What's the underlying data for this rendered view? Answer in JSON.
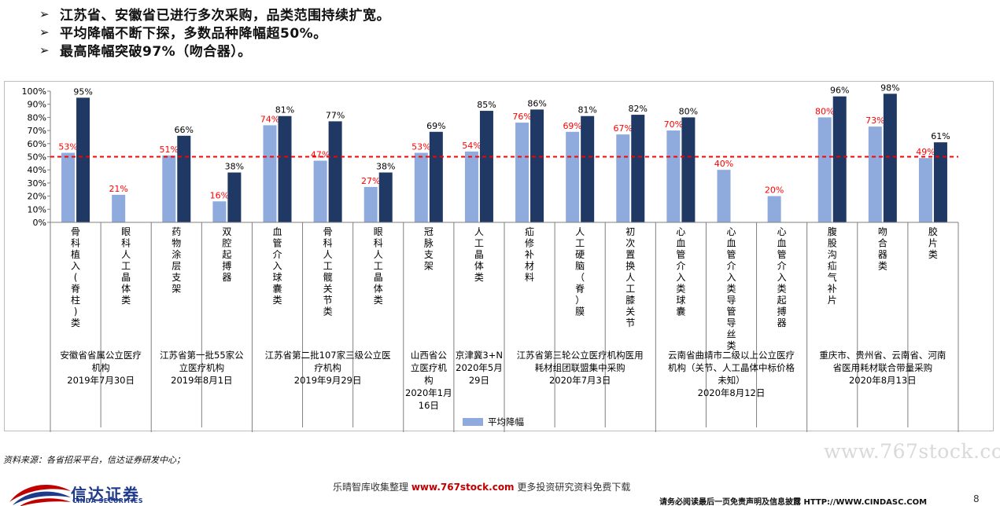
{
  "bullets": [
    {
      "mark": "➢",
      "text": "江苏省、安徽省已进行多次采购，品类范围持续扩宽。"
    },
    {
      "mark": "➢",
      "text": "平均降幅不断下探，多数品种降幅超50%。"
    },
    {
      "mark": "➢",
      "text": "最高降幅突破97%（吻合器）。"
    }
  ],
  "colors": {
    "avg": "#8faadc",
    "max": "#1f3864",
    "avg_label": "#ff0000",
    "max_label": "#000000",
    "ref_line": "#ff0000"
  },
  "chart_data": {
    "type": "bar",
    "ylim": [
      0,
      100
    ],
    "yticks": [
      "0%",
      "10%",
      "20%",
      "30%",
      "40%",
      "50%",
      "60%",
      "70%",
      "80%",
      "90%",
      "100%"
    ],
    "ref_line": 50,
    "categories": [
      "骨科植入(脊柱)类",
      "眼科人工晶体类",
      "药物涂层支架",
      "双腔起搏器",
      "血管介入球囊类",
      "骨科人工髋关节类",
      "眼科人工晶体类",
      "冠脉支架",
      "人工晶体类",
      "疝修补材料",
      "人工硬脑（脊）膜",
      "初次置换人工膝关节",
      "心血管介入类球囊",
      "心血管介入类导管导丝类",
      "心血管介入类起搏器",
      "腹股沟疝气补片",
      "吻合器类",
      "胶片类"
    ],
    "series": [
      {
        "name": "平均降幅",
        "values": [
          53,
          21,
          51,
          16,
          74,
          47,
          27,
          53,
          54,
          76,
          69,
          67,
          70,
          40,
          20,
          80,
          73,
          49
        ],
        "labels": [
          "53%",
          "21%",
          "51%",
          "16%",
          "74%",
          "47%",
          "27%",
          "53%",
          "54%",
          "76%",
          "69%",
          "67%",
          "70%",
          "40%",
          "20%",
          "80%",
          "73%",
          "49%"
        ]
      },
      {
        "values": [
          95,
          null,
          66,
          38,
          81,
          77,
          38,
          69,
          85,
          86,
          81,
          82,
          80,
          null,
          null,
          96,
          98,
          61
        ],
        "labels": [
          "95%",
          "",
          "66%",
          "38%",
          "81%",
          "77%",
          "38%",
          "69%",
          "85%",
          "86%",
          "81%",
          "82%",
          "80%",
          "",
          "",
          "96%",
          "98%",
          "61%"
        ]
      }
    ],
    "groups": [
      {
        "span": [
          0,
          1
        ],
        "lines": [
          "安徽省省属公立医疗",
          "机构",
          "2019年7月30日"
        ]
      },
      {
        "span": [
          2,
          3
        ],
        "lines": [
          "江苏省第一批55家公",
          "立医疗机构",
          "2019年8月1日"
        ]
      },
      {
        "span": [
          4,
          6
        ],
        "lines": [
          "江苏省第二批107家三级公立医",
          "疗机构",
          "2019年9月29日"
        ]
      },
      {
        "span": [
          7,
          7
        ],
        "lines": [
          "山西省公",
          "立医疗机",
          "构",
          "2020年1月",
          "16日"
        ]
      },
      {
        "span": [
          8,
          8
        ],
        "lines": [
          "京津冀3+N",
          "2020年5月",
          "29日"
        ]
      },
      {
        "span": [
          9,
          11
        ],
        "lines": [
          "江苏省第三轮公立医疗机构医用",
          "耗材组团联盟集中采购",
          "2020年7月3日"
        ]
      },
      {
        "span": [
          12,
          14
        ],
        "lines": [
          "云南省曲靖市二级以上公立医疗",
          "机构（关节、人工晶体中标价格",
          "未知）",
          "2020年8月12日"
        ]
      },
      {
        "span": [
          15,
          17
        ],
        "lines": [
          "重庆市、贵州省、云南省、河南",
          "省医用耗材联合带量采购",
          "2020年8月13日"
        ]
      }
    ],
    "legend": [
      {
        "name": "平均降幅"
      }
    ]
  },
  "source": "资料来源：各省招采平台，信达证券研发中心；",
  "watermark": "www.767stock.com",
  "logo": {
    "cn": "信达证券",
    "en": "CINDA SECURITIES"
  },
  "footer": {
    "prefix": "乐晴智库收集整理 ",
    "site": "www.767stock.com",
    "suffix": " 更多投资研究资料免费下载"
  },
  "disclaimer": "请务必阅读最后一页免责声明及信息披露  HTTP://WWW.CINDASC.COM",
  "page_number": "8"
}
